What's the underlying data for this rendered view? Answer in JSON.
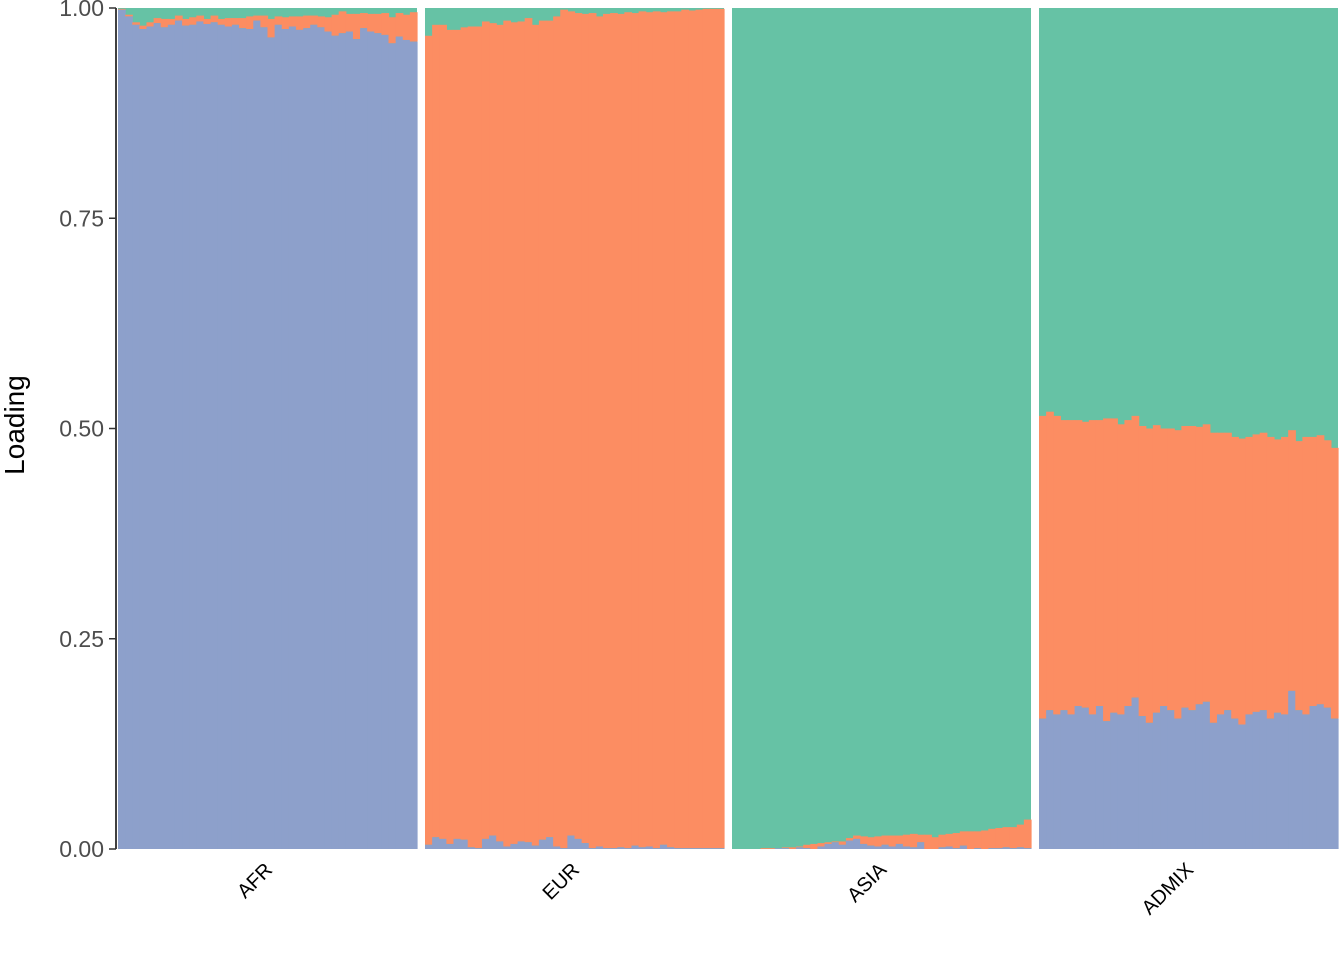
{
  "chart_data": {
    "type": "bar",
    "subtype": "stacked-100-structure-plot",
    "title": "",
    "xlabel": "",
    "ylabel": "Loading",
    "ylim": [
      0,
      1
    ],
    "y_ticks": [
      "0.00",
      "0.25",
      "0.50",
      "0.75",
      "1.00"
    ],
    "y_tick_values": [
      0,
      0.25,
      0.5,
      0.75,
      1
    ],
    "grid": false,
    "legend": "none",
    "component_order_bottom_to_top": [
      "blue",
      "orange",
      "green"
    ],
    "component_colors": {
      "blue": "#8da0cb",
      "orange": "#fc8d62",
      "green": "#66c2a5"
    },
    "groups": [
      {
        "label": "AFR",
        "blue": [
          0.998,
          0.99,
          0.98,
          0.975,
          0.978,
          0.982,
          0.977,
          0.98,
          0.985,
          0.979,
          0.98,
          0.984,
          0.981,
          0.983,
          0.98,
          0.978,
          0.98,
          0.976,
          0.975,
          0.985,
          0.977,
          0.965,
          0.98,
          0.975,
          0.978,
          0.974,
          0.976,
          0.98,
          0.977,
          0.972,
          0.967,
          0.97,
          0.972,
          0.963,
          0.976,
          0.972,
          0.97,
          0.968,
          0.958,
          0.966,
          0.962,
          0.96
        ],
        "orange": [
          0.001,
          0.002,
          0.003,
          0.004,
          0.005,
          0.006,
          0.01,
          0.007,
          0.006,
          0.008,
          0.009,
          0.007,
          0.006,
          0.008,
          0.007,
          0.01,
          0.008,
          0.012,
          0.015,
          0.006,
          0.014,
          0.022,
          0.01,
          0.014,
          0.012,
          0.016,
          0.015,
          0.011,
          0.013,
          0.017,
          0.025,
          0.026,
          0.021,
          0.03,
          0.018,
          0.021,
          0.023,
          0.026,
          0.031,
          0.028,
          0.03,
          0.035
        ]
      },
      {
        "label": "EUR",
        "blue": [
          0.005,
          0.014,
          0.012,
          0.006,
          0.012,
          0.011,
          0.002,
          0.001,
          0.012,
          0.016,
          0.009,
          0.003,
          0.006,
          0.009,
          0.008,
          0.004,
          0.011,
          0.014,
          0.003,
          0.001,
          0.016,
          0.012,
          0.007,
          0.001,
          0.003,
          0.001,
          0.001,
          0.002,
          0.001,
          0.004,
          0.002,
          0.003,
          0.001,
          0.005,
          0.002,
          0.001,
          0.001,
          0.001,
          0.001,
          0.001,
          0.001,
          0.001
        ],
        "orange": [
          0.962,
          0.966,
          0.968,
          0.968,
          0.962,
          0.966,
          0.976,
          0.977,
          0.972,
          0.966,
          0.971,
          0.982,
          0.977,
          0.975,
          0.98,
          0.976,
          0.974,
          0.971,
          0.987,
          0.997,
          0.98,
          0.982,
          0.986,
          0.993,
          0.987,
          0.992,
          0.993,
          0.991,
          0.994,
          0.99,
          0.994,
          0.992,
          0.995,
          0.99,
          0.994,
          0.995,
          0.997,
          0.996,
          0.997,
          0.998,
          0.998,
          0.998
        ]
      },
      {
        "label": "ASIA",
        "blue": [
          0.0,
          0.0,
          0.0,
          0.0,
          0.0,
          0.0,
          0.001,
          0.001,
          0.0,
          0.002,
          0.001,
          0.0,
          0.003,
          0.006,
          0.008,
          0.005,
          0.01,
          0.012,
          0.006,
          0.004,
          0.003,
          0.005,
          0.003,
          0.006,
          0.003,
          0.002,
          0.008,
          0.0,
          0.0,
          0.002,
          0.003,
          0.001,
          0.004,
          0.0,
          0.001,
          0.0,
          0.001,
          0.001,
          0.002,
          0.001,
          0.002,
          0.001
        ],
        "orange": [
          0.0,
          0.0,
          0.0,
          0.0,
          0.001,
          0.001,
          0.0,
          0.001,
          0.002,
          0.001,
          0.004,
          0.006,
          0.004,
          0.002,
          0.001,
          0.004,
          0.003,
          0.004,
          0.009,
          0.01,
          0.012,
          0.011,
          0.013,
          0.01,
          0.014,
          0.016,
          0.009,
          0.017,
          0.014,
          0.015,
          0.015,
          0.018,
          0.017,
          0.021,
          0.02,
          0.022,
          0.023,
          0.024,
          0.024,
          0.025,
          0.027,
          0.034
        ]
      },
      {
        "label": "ADMIX",
        "blue": [
          0.155,
          0.165,
          0.16,
          0.165,
          0.16,
          0.17,
          0.168,
          0.16,
          0.17,
          0.152,
          0.162,
          0.16,
          0.17,
          0.18,
          0.158,
          0.15,
          0.162,
          0.17,
          0.165,
          0.155,
          0.168,
          0.165,
          0.172,
          0.175,
          0.15,
          0.16,
          0.165,
          0.155,
          0.148,
          0.16,
          0.163,
          0.165,
          0.155,
          0.162,
          0.16,
          0.188,
          0.165,
          0.16,
          0.17,
          0.172,
          0.168,
          0.155
        ],
        "orange": [
          0.36,
          0.355,
          0.355,
          0.345,
          0.35,
          0.34,
          0.34,
          0.35,
          0.34,
          0.36,
          0.35,
          0.345,
          0.34,
          0.335,
          0.345,
          0.35,
          0.342,
          0.33,
          0.335,
          0.343,
          0.335,
          0.338,
          0.33,
          0.33,
          0.345,
          0.335,
          0.33,
          0.335,
          0.34,
          0.33,
          0.33,
          0.33,
          0.335,
          0.325,
          0.33,
          0.31,
          0.32,
          0.33,
          0.32,
          0.32,
          0.318,
          0.322
        ]
      }
    ]
  }
}
